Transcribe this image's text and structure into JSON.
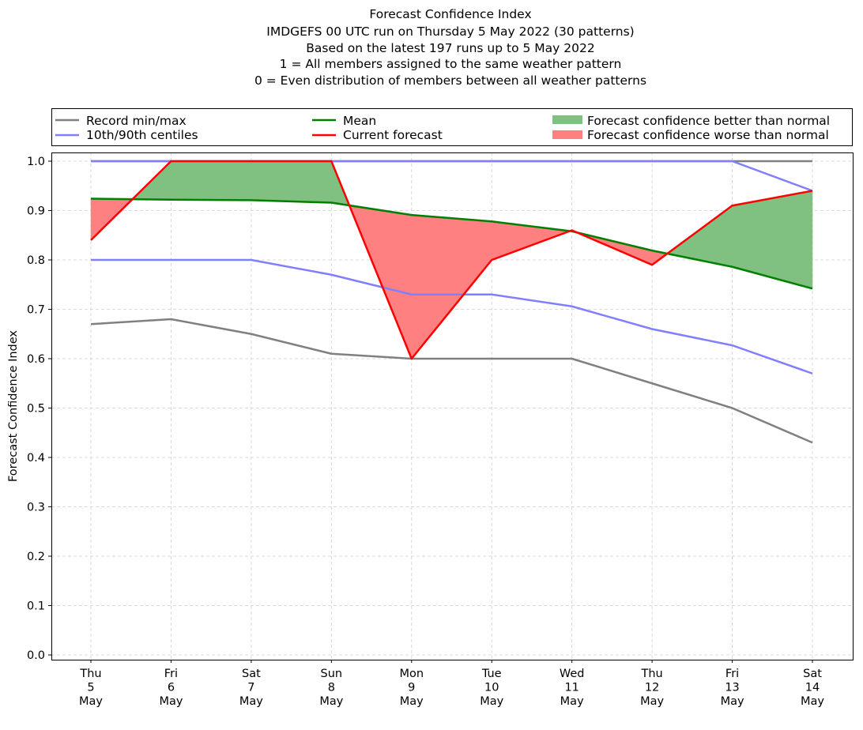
{
  "chart_data": {
    "type": "line",
    "title": [
      "Forecast Confidence Index",
      "IMDGEFS 00 UTC run on Thursday 5 May 2022 (30 patterns)",
      "Based on the latest 197 runs up to 5 May 2022",
      "1 = All members assigned to the same weather pattern",
      "0 = Even distribution of members between all weather patterns"
    ],
    "xlabel": "",
    "ylabel": "Forecast Confidence Index",
    "ylim": [
      0.0,
      1.0
    ],
    "yticks": [
      "0.0",
      "0.1",
      "0.2",
      "0.3",
      "0.4",
      "0.5",
      "0.6",
      "0.7",
      "0.8",
      "0.9",
      "1.0"
    ],
    "grid": true,
    "legend_position": "top, above plot (3 columns)",
    "categories": [
      [
        "Thu",
        "5",
        "May"
      ],
      [
        "Fri",
        "6",
        "May"
      ],
      [
        "Sat",
        "7",
        "May"
      ],
      [
        "Sun",
        "8",
        "May"
      ],
      [
        "Mon",
        "9",
        "May"
      ],
      [
        "Tue",
        "10",
        "May"
      ],
      [
        "Wed",
        "11",
        "May"
      ],
      [
        "Thu",
        "12",
        "May"
      ],
      [
        "Fri",
        "13",
        "May"
      ],
      [
        "Sat",
        "14",
        "May"
      ]
    ],
    "series": [
      {
        "key": "record_min",
        "name": "Record min/max",
        "color": "#808080",
        "values": [
          0.67,
          0.68,
          0.65,
          0.61,
          0.6,
          0.6,
          0.6,
          0.55,
          0.5,
          0.43
        ]
      },
      {
        "key": "record_max",
        "name": "Record min/max",
        "color": "#808080",
        "values": [
          1.0,
          1.0,
          1.0,
          1.0,
          1.0,
          1.0,
          1.0,
          1.0,
          1.0,
          1.0
        ]
      },
      {
        "key": "p10",
        "name": "10th/90th centiles",
        "color": "#7f7fff",
        "values": [
          0.8,
          0.8,
          0.8,
          0.77,
          0.73,
          0.73,
          0.706,
          0.66,
          0.627,
          0.57
        ]
      },
      {
        "key": "p90",
        "name": "10th/90th centiles",
        "color": "#7f7fff",
        "values": [
          1.0,
          1.0,
          1.0,
          1.0,
          1.0,
          1.0,
          1.0,
          1.0,
          1.0,
          0.94
        ]
      },
      {
        "key": "mean",
        "name": "Mean",
        "color": "#008000",
        "values": [
          0.924,
          0.922,
          0.921,
          0.916,
          0.891,
          0.878,
          0.858,
          0.819,
          0.786,
          0.742
        ]
      },
      {
        "key": "current",
        "name": "Current forecast",
        "color": "#ff0000",
        "values": [
          0.84,
          1.0,
          1.0,
          1.0,
          0.6,
          0.8,
          0.86,
          0.79,
          0.91,
          0.94
        ]
      }
    ],
    "fills": [
      {
        "name": "Forecast confidence better than normal",
        "color": "#80c080",
        "condition": "current >= mean"
      },
      {
        "name": "Forecast confidence worse than normal",
        "color": "#ff8080",
        "condition": "current < mean"
      }
    ],
    "legend": [
      {
        "label": "Record min/max",
        "kind": "line",
        "color": "#808080"
      },
      {
        "label": "10th/90th centiles",
        "kind": "line",
        "color": "#7f7fff"
      },
      {
        "label": "Mean",
        "kind": "line",
        "color": "#008000"
      },
      {
        "label": "Current forecast",
        "kind": "line",
        "color": "#ff0000"
      },
      {
        "label": "Forecast confidence better than normal",
        "kind": "patch",
        "color": "#80c080"
      },
      {
        "label": "Forecast confidence worse than normal",
        "kind": "patch",
        "color": "#ff8080"
      }
    ]
  }
}
